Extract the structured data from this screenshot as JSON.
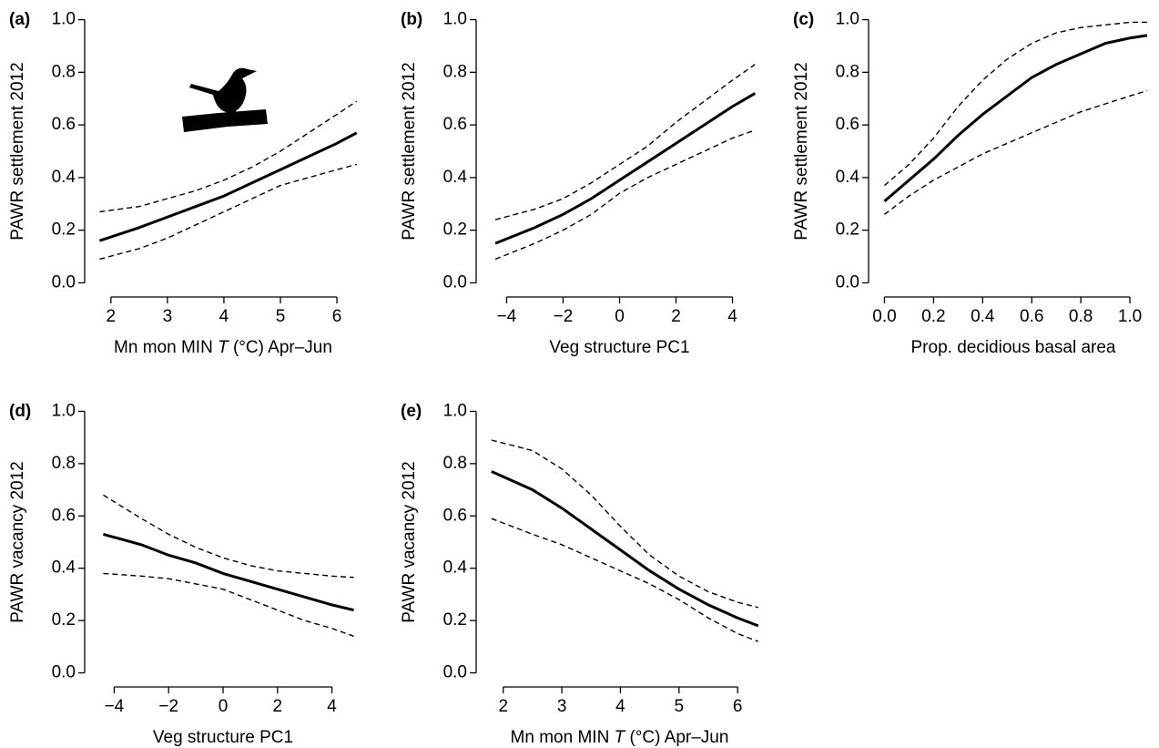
{
  "chart_data": [
    {
      "type": "line",
      "panel_label": "(a)",
      "ylabel": "PAWR settlement 2012",
      "xlabel": [
        {
          "text": "Mn mon MIN "
        },
        {
          "text": "T",
          "italic": true
        },
        {
          "text": " (°C) Apr–Jun"
        }
      ],
      "x": [
        1.8,
        2.5,
        3,
        3.5,
        4,
        4.5,
        5,
        5.5,
        6,
        6.35
      ],
      "series": [
        {
          "color": "#000000",
          "dashed": false,
          "values": [
            0.16,
            0.21,
            0.25,
            0.29,
            0.33,
            0.38,
            0.43,
            0.48,
            0.53,
            0.57
          ]
        },
        {
          "color": "#000000",
          "dashed": true,
          "values": [
            0.09,
            0.13,
            0.17,
            0.22,
            0.27,
            0.32,
            0.37,
            0.4,
            0.43,
            0.45
          ]
        },
        {
          "color": "#000000",
          "dashed": true,
          "values": [
            0.27,
            0.29,
            0.32,
            0.35,
            0.39,
            0.44,
            0.5,
            0.57,
            0.64,
            0.69
          ]
        }
      ],
      "xlim": [
        1.6,
        6.37
      ],
      "ylim": [
        -0.04,
        1.04
      ],
      "xticks": [
        2,
        3,
        4,
        5,
        6
      ],
      "yticks": [
        {
          "value": 0,
          "label": "0.0"
        },
        0.2,
        0.4,
        0.6,
        0.8,
        {
          "value": 1,
          "label": "1.0"
        }
      ]
    },
    {
      "type": "line",
      "panel_label": "(b)",
      "ylabel": "PAWR settlement 2012",
      "xlabel": "Veg structure PC1",
      "x": [
        -4.4,
        -3,
        -2,
        -1,
        0,
        1,
        2,
        3,
        4,
        4.8
      ],
      "series": [
        {
          "color": "#000000",
          "dashed": false,
          "values": [
            0.15,
            0.21,
            0.26,
            0.32,
            0.39,
            0.46,
            0.53,
            0.6,
            0.67,
            0.72
          ]
        },
        {
          "color": "#000000",
          "dashed": true,
          "values": [
            0.09,
            0.15,
            0.2,
            0.26,
            0.34,
            0.4,
            0.45,
            0.5,
            0.55,
            0.58
          ]
        },
        {
          "color": "#000000",
          "dashed": true,
          "values": [
            0.24,
            0.28,
            0.32,
            0.38,
            0.45,
            0.52,
            0.61,
            0.69,
            0.77,
            0.83
          ]
        }
      ],
      "xlim": [
        -4.95,
        4.95
      ],
      "ylim": [
        -0.04,
        1.04
      ],
      "xticks": [
        {
          "value": -4,
          "label": "−4"
        },
        {
          "value": -2,
          "label": "−2"
        },
        0,
        2,
        4
      ],
      "yticks": [
        {
          "value": 0,
          "label": "0.0"
        },
        0.2,
        0.4,
        0.6,
        0.8,
        {
          "value": 1,
          "label": "1.0"
        }
      ]
    },
    {
      "type": "line",
      "panel_label": "(c)",
      "ylabel": "PAWR settlement 2012",
      "xlabel": "Prop. decidious basal area",
      "x": [
        0,
        0.1,
        0.2,
        0.3,
        0.4,
        0.5,
        0.6,
        0.7,
        0.8,
        0.9,
        1.0,
        1.07
      ],
      "series": [
        {
          "color": "#000000",
          "dashed": false,
          "values": [
            0.31,
            0.39,
            0.47,
            0.56,
            0.64,
            0.71,
            0.78,
            0.83,
            0.87,
            0.91,
            0.93,
            0.94
          ]
        },
        {
          "color": "#000000",
          "dashed": true,
          "values": [
            0.26,
            0.33,
            0.39,
            0.44,
            0.49,
            0.53,
            0.57,
            0.61,
            0.65,
            0.68,
            0.71,
            0.73
          ]
        },
        {
          "color": "#000000",
          "dashed": true,
          "values": [
            0.37,
            0.45,
            0.55,
            0.67,
            0.77,
            0.85,
            0.91,
            0.95,
            0.97,
            0.98,
            0.99,
            0.99
          ]
        }
      ],
      "xlim": [
        -0.05,
        1.1
      ],
      "ylim": [
        -0.04,
        1.04
      ],
      "xticks": [
        {
          "value": 0,
          "label": "0.0"
        },
        0.2,
        0.4,
        0.6,
        0.8,
        {
          "value": 1,
          "label": "1.0"
        }
      ],
      "yticks": [
        {
          "value": 0,
          "label": "0.0"
        },
        0.2,
        0.4,
        0.6,
        0.8,
        {
          "value": 1,
          "label": "1.0"
        }
      ]
    },
    {
      "type": "line",
      "panel_label": "(d)",
      "ylabel": "PAWR vacancy 2012",
      "xlabel": "Veg structure PC1",
      "x": [
        -4.4,
        -3,
        -2,
        -1,
        0,
        1,
        2,
        3,
        4,
        4.8
      ],
      "series": [
        {
          "color": "#000000",
          "dashed": false,
          "values": [
            0.53,
            0.49,
            0.45,
            0.42,
            0.38,
            0.35,
            0.32,
            0.29,
            0.26,
            0.24
          ]
        },
        {
          "color": "#000000",
          "dashed": true,
          "values": [
            0.38,
            0.37,
            0.36,
            0.34,
            0.32,
            0.28,
            0.24,
            0.2,
            0.17,
            0.14
          ]
        },
        {
          "color": "#000000",
          "dashed": true,
          "values": [
            0.68,
            0.59,
            0.53,
            0.48,
            0.44,
            0.41,
            0.39,
            0.38,
            0.37,
            0.365
          ]
        }
      ],
      "xlim": [
        -4.95,
        4.95
      ],
      "ylim": [
        -0.04,
        1.04
      ],
      "xticks": [
        {
          "value": -4,
          "label": "−4"
        },
        {
          "value": -2,
          "label": "−2"
        },
        0,
        2,
        4
      ],
      "yticks": [
        {
          "value": 0,
          "label": "0.0"
        },
        0.2,
        0.4,
        0.6,
        0.8,
        {
          "value": 1,
          "label": "1.0"
        }
      ]
    },
    {
      "type": "line",
      "panel_label": "(e)",
      "ylabel": "PAWR vacancy 2012",
      "xlabel": [
        {
          "text": "Mn mon MIN "
        },
        {
          "text": "T",
          "italic": true
        },
        {
          "text": " (°C) Apr–Jun"
        }
      ],
      "x": [
        1.8,
        2.5,
        3,
        3.5,
        4,
        4.5,
        5,
        5.5,
        6,
        6.35
      ],
      "series": [
        {
          "color": "#000000",
          "dashed": false,
          "values": [
            0.77,
            0.7,
            0.63,
            0.55,
            0.47,
            0.39,
            0.32,
            0.26,
            0.21,
            0.18
          ]
        },
        {
          "color": "#000000",
          "dashed": true,
          "values": [
            0.59,
            0.53,
            0.49,
            0.44,
            0.39,
            0.34,
            0.28,
            0.21,
            0.15,
            0.12
          ]
        },
        {
          "color": "#000000",
          "dashed": true,
          "values": [
            0.89,
            0.85,
            0.78,
            0.68,
            0.56,
            0.45,
            0.37,
            0.31,
            0.27,
            0.25
          ]
        }
      ],
      "xlim": [
        1.6,
        6.37
      ],
      "ylim": [
        -0.04,
        1.04
      ],
      "xticks": [
        2,
        3,
        4,
        5,
        6
      ],
      "yticks": [
        {
          "value": 0,
          "label": "0.0"
        },
        0.2,
        0.4,
        0.6,
        0.8,
        {
          "value": 1,
          "label": "1.0"
        }
      ]
    }
  ]
}
